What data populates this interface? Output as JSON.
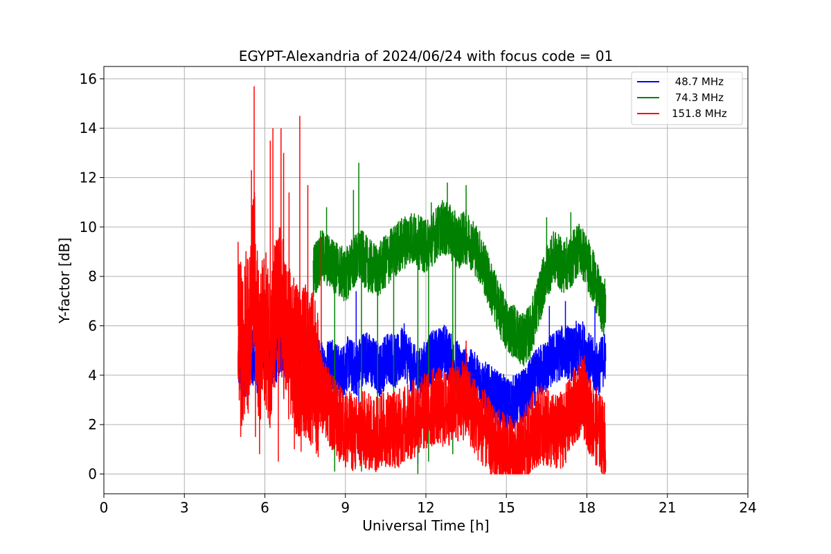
{
  "chart_data": {
    "type": "line",
    "title": "EGYPT-Alexandria of 2024/06/24 with focus code = 01",
    "xlabel": "Universal Time [h]",
    "ylabel": "Y-factor [dB]",
    "xlim": [
      0,
      24
    ],
    "ylim": [
      -0.8,
      16.5
    ],
    "xticks": [
      0,
      3,
      6,
      9,
      12,
      15,
      18,
      21,
      24
    ],
    "yticks": [
      0,
      2,
      4,
      6,
      8,
      10,
      12,
      14,
      16
    ],
    "grid": true,
    "legend_position": "top-right",
    "series": [
      {
        "name": " 48.7 MHz",
        "color": "#0000ff",
        "x": [
          5.0,
          5.2,
          5.5,
          5.8,
          6.0,
          6.3,
          6.6,
          7.0,
          7.3,
          7.6,
          7.9,
          8.2,
          8.5,
          8.8,
          9.1,
          9.4,
          9.7,
          10.0,
          10.3,
          10.6,
          10.9,
          11.2,
          11.5,
          11.8,
          12.1,
          12.4,
          12.7,
          13.0,
          13.3,
          13.6,
          13.9,
          14.2,
          14.5,
          14.8,
          15.1,
          15.4,
          15.7,
          16.0,
          16.3,
          16.6,
          16.9,
          17.2,
          17.5,
          17.8,
          18.1,
          18.4,
          18.7
        ],
        "y": [
          4.5,
          4.0,
          4.8,
          4.2,
          5.0,
          4.5,
          5.2,
          4.6,
          5.0,
          4.8,
          4.5,
          4.2,
          4.6,
          4.0,
          4.5,
          4.2,
          4.8,
          4.5,
          4.2,
          4.8,
          4.5,
          5.0,
          4.2,
          4.0,
          4.6,
          4.8,
          5.0,
          4.5,
          4.2,
          4.0,
          3.8,
          3.5,
          3.2,
          3.0,
          2.8,
          3.0,
          3.2,
          3.8,
          4.2,
          4.5,
          4.8,
          5.0,
          4.8,
          5.2,
          4.6,
          4.2,
          4.8
        ],
        "spikes": [
          [
            9.4,
            7.4
          ],
          [
            9.5,
            0.8
          ],
          [
            11.7,
            0.4
          ],
          [
            12.5,
            5.8
          ],
          [
            16.6,
            6.8
          ],
          [
            17.2,
            7.0
          ],
          [
            17.6,
            6.2
          ],
          [
            18.3,
            6.8
          ]
        ]
      },
      {
        "name": " 74.3 MHz",
        "color": "#008000",
        "x": [
          7.8,
          8.1,
          8.4,
          8.7,
          9.0,
          9.3,
          9.6,
          9.9,
          10.2,
          10.5,
          10.8,
          11.1,
          11.4,
          11.7,
          12.0,
          12.3,
          12.6,
          12.9,
          13.2,
          13.5,
          13.8,
          14.1,
          14.4,
          14.7,
          15.0,
          15.3,
          15.6,
          15.9,
          16.2,
          16.5,
          16.8,
          17.1,
          17.4,
          17.7,
          18.0,
          18.3,
          18.6,
          18.7
        ],
        "y": [
          8.2,
          8.8,
          8.6,
          8.3,
          8.0,
          8.6,
          8.8,
          8.4,
          8.2,
          8.6,
          9.0,
          9.3,
          9.6,
          9.4,
          9.2,
          9.6,
          10.0,
          9.8,
          9.4,
          9.6,
          9.2,
          8.6,
          7.6,
          6.8,
          6.0,
          5.8,
          5.4,
          5.8,
          7.0,
          8.2,
          8.8,
          8.4,
          8.6,
          9.2,
          8.6,
          7.8,
          6.6,
          7.0
        ],
        "spikes": [
          [
            8.0,
            8.6
          ],
          [
            8.3,
            10.8
          ],
          [
            8.6,
            0.1
          ],
          [
            9.5,
            12.6
          ],
          [
            9.3,
            11.5
          ],
          [
            9.6,
            0.1
          ],
          [
            10.2,
            0.3
          ],
          [
            10.8,
            0.5
          ],
          [
            11.7,
            0.0
          ],
          [
            12.1,
            0.5
          ],
          [
            12.8,
            11.8
          ],
          [
            13.0,
            0.8
          ],
          [
            13.5,
            11.7
          ],
          [
            13.1,
            3.0
          ],
          [
            12.2,
            11.0
          ],
          [
            16.5,
            10.4
          ],
          [
            17.4,
            10.6
          ]
        ]
      },
      {
        "name": "151.8 MHz",
        "color": "#ff0000",
        "x": [
          5.0,
          5.1,
          5.2,
          5.3,
          5.4,
          5.5,
          5.6,
          5.7,
          5.8,
          5.9,
          6.0,
          6.2,
          6.4,
          6.6,
          6.8,
          7.0,
          7.2,
          7.4,
          7.6,
          7.8,
          8.0,
          8.2,
          8.5,
          8.8,
          9.1,
          9.4,
          9.7,
          10.0,
          10.3,
          10.6,
          10.9,
          11.2,
          11.5,
          11.8,
          12.1,
          12.4,
          12.7,
          13.0,
          13.3,
          13.6,
          13.9,
          14.2,
          14.5,
          14.8,
          15.1,
          15.4,
          15.7,
          16.0,
          16.3,
          16.6,
          16.9,
          17.2,
          17.5,
          17.8,
          18.1,
          18.4,
          18.7
        ],
        "y": [
          6.0,
          5.5,
          4.5,
          6.5,
          5.0,
          7.5,
          8.5,
          6.5,
          4.5,
          5.5,
          6.0,
          5.0,
          6.5,
          7.0,
          5.5,
          5.0,
          4.5,
          4.8,
          4.5,
          4.2,
          3.8,
          3.0,
          2.5,
          2.0,
          1.8,
          1.6,
          1.8,
          1.6,
          1.8,
          1.9,
          1.8,
          2.0,
          2.2,
          2.4,
          2.6,
          2.8,
          2.6,
          2.8,
          3.0,
          2.8,
          2.2,
          1.8,
          1.2,
          1.0,
          0.8,
          0.6,
          1.2,
          1.8,
          2.0,
          1.8,
          1.6,
          2.0,
          2.6,
          3.2,
          2.4,
          1.8,
          1.4
        ],
        "spikes": [
          [
            5.0,
            9.4
          ],
          [
            5.1,
            1.5
          ],
          [
            5.5,
            12.3
          ],
          [
            5.6,
            15.7
          ],
          [
            5.65,
            1.5
          ],
          [
            5.8,
            0.8
          ],
          [
            6.2,
            13.5
          ],
          [
            6.3,
            14.0
          ],
          [
            6.5,
            0.5
          ],
          [
            6.6,
            14.0
          ],
          [
            6.7,
            13.0
          ],
          [
            6.9,
            11.4
          ],
          [
            7.1,
            1.0
          ],
          [
            7.3,
            14.5
          ],
          [
            7.35,
            0.9
          ],
          [
            7.6,
            11.7
          ],
          [
            8.0,
            1.8
          ],
          [
            8.1,
            9.6
          ],
          [
            10.5,
            0.5
          ],
          [
            13.0,
            4.6
          ],
          [
            13.5,
            5.4
          ],
          [
            15.4,
            0.0
          ],
          [
            15.6,
            0.0
          ],
          [
            17.9,
            4.8
          ]
        ]
      }
    ]
  }
}
